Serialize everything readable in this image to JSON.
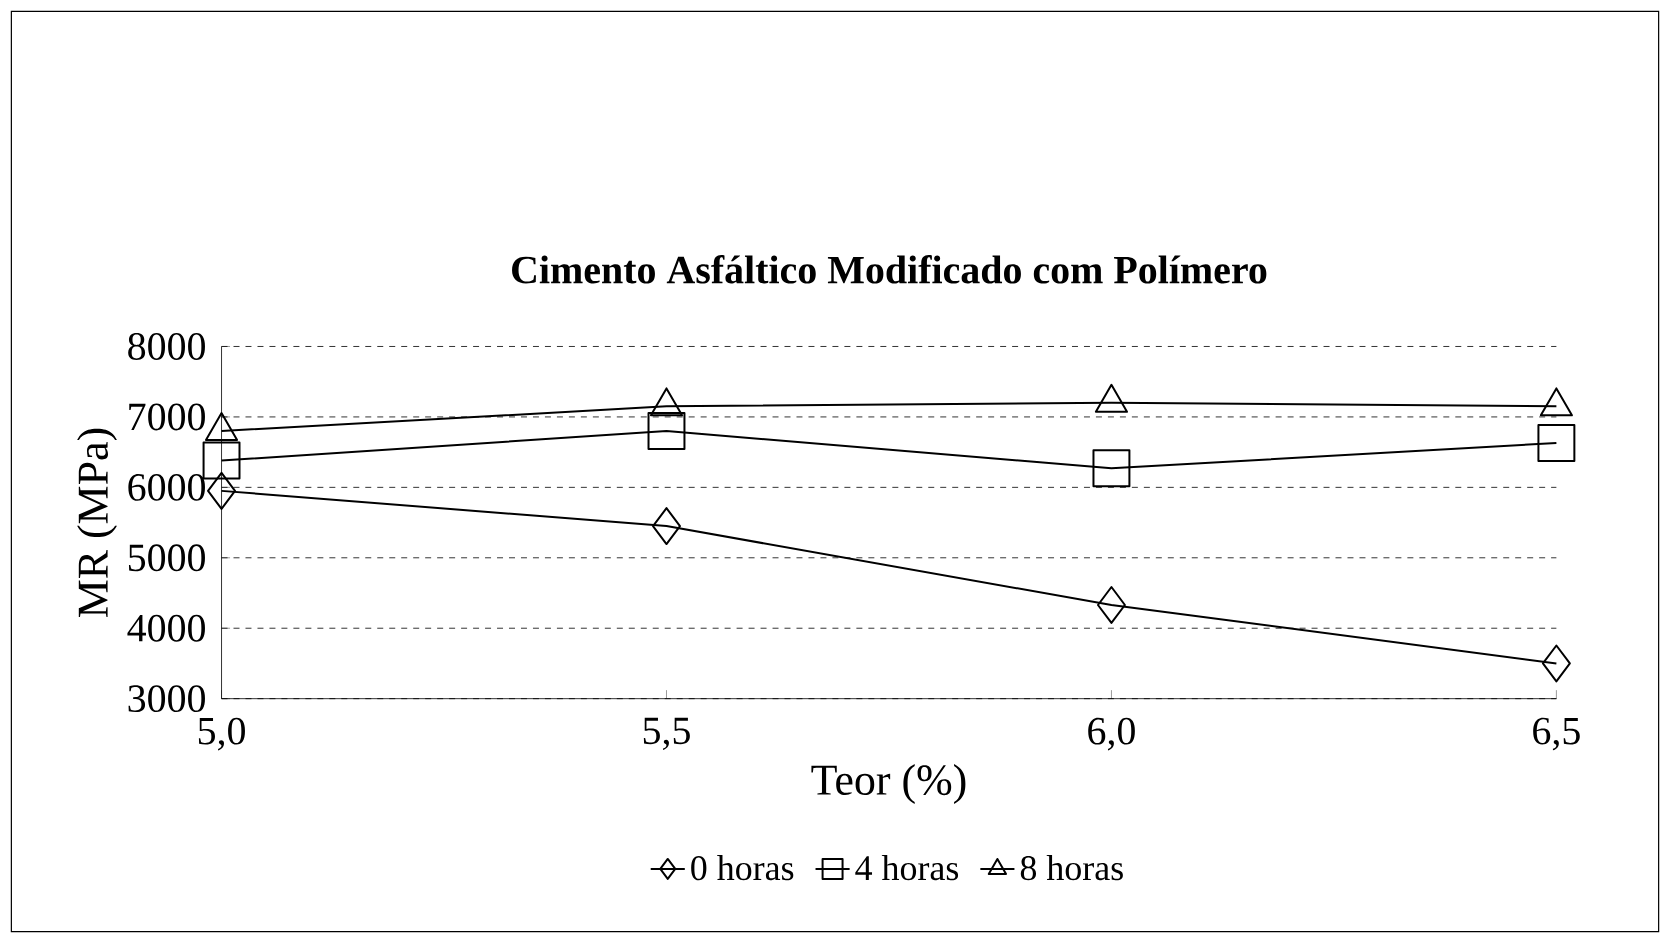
{
  "chart_data": {
    "type": "line",
    "title": "Cimento Asfáltico Modificado com Polímero",
    "xlabel": "Teor (%)",
    "ylabel": "MR (MPa)",
    "x": [
      5.0,
      5.5,
      6.0,
      6.5
    ],
    "series": [
      {
        "name": "0 horas",
        "color": "#000000",
        "marker": "diamond",
        "values": [
          5950,
          5450,
          4330,
          3500
        ]
      },
      {
        "name": "4 horas",
        "color": "#000000",
        "marker": "square",
        "values": [
          6380,
          6800,
          6270,
          6630
        ]
      },
      {
        "name": "8 horas",
        "color": "#000000",
        "marker": "triangle",
        "values": [
          6800,
          7150,
          7200,
          7150
        ]
      }
    ],
    "xlim": [
      5.0,
      6.5
    ],
    "xticks": [
      {
        "value": 5.0,
        "label": "5,0"
      },
      {
        "value": 5.5,
        "label": "5,5"
      },
      {
        "value": 6.0,
        "label": "6,0"
      },
      {
        "value": 6.5,
        "label": "6,5"
      }
    ],
    "ylim": [
      3000,
      8000
    ],
    "yticks": [
      3000,
      4000,
      5000,
      6000,
      7000,
      8000
    ],
    "grid": "y",
    "legend": "bottom",
    "line_style": "solid"
  }
}
